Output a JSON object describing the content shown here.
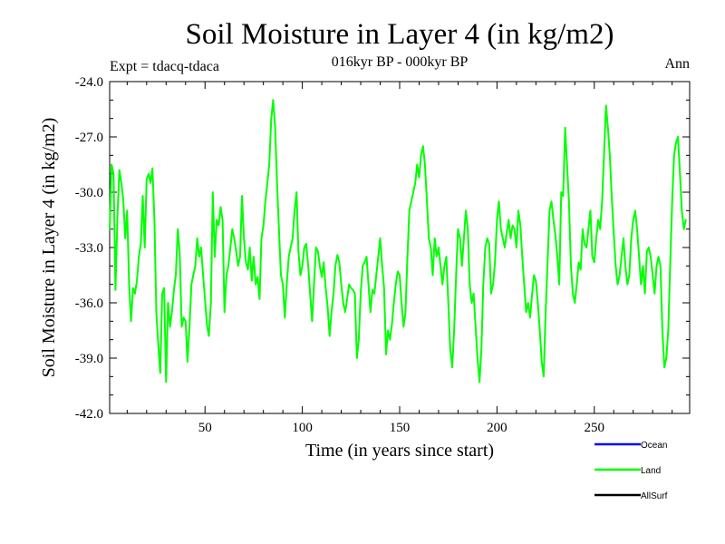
{
  "chart_data": {
    "type": "line",
    "title": "Soil Moisture in Layer 4 (in kg/m2)",
    "subtitle": "016kyr BP - 000kyr BP",
    "experiment": "Expt = tdacq-tdaca",
    "season": "Ann",
    "xlabel": "Time (in years since start)",
    "ylabel": "Soil Moisture in Layer 4 (in kg/m2)",
    "xlim": [
      1,
      299
    ],
    "ylim": [
      -42,
      -24
    ],
    "x_ticks": [
      50,
      100,
      150,
      200,
      250
    ],
    "x_tick_labels": [
      "50",
      "100",
      "150",
      "200",
      "250"
    ],
    "y_ticks": [
      -24,
      -27,
      -30,
      -33,
      -36,
      -39,
      -42
    ],
    "y_tick_labels": [
      "-24.0",
      "-27.0",
      "-30.0",
      "-33.0",
      "-36.0",
      "-39.0",
      "-42.0"
    ],
    "legend": [
      {
        "name": "Ocean",
        "color": "#0000ff"
      },
      {
        "name": "Land",
        "color": "#00ff00"
      },
      {
        "name": "AllSurf",
        "color": "#000000"
      }
    ],
    "series": [
      {
        "name": "Land",
        "color": "#00ff00",
        "x_start": 1,
        "x_step": 1,
        "values": [
          -32.0,
          -28.5,
          -29.0,
          -35.3,
          -31.3,
          -28.8,
          -29.5,
          -30.4,
          -32.5,
          -31.0,
          -35.0,
          -37.0,
          -35.2,
          -35.5,
          -34.8,
          -33.5,
          -32.8,
          -30.2,
          -33.0,
          -29.3,
          -29.0,
          -29.5,
          -28.7,
          -31.5,
          -36.5,
          -38.3,
          -39.8,
          -35.5,
          -35.2,
          -40.3,
          -36.0,
          -37.3,
          -36.5,
          -35.3,
          -34.5,
          -32.0,
          -33.3,
          -37.3,
          -36.8,
          -37.0,
          -39.2,
          -37.3,
          -35.0,
          -34.5,
          -34.0,
          -32.5,
          -33.5,
          -33.0,
          -34.5,
          -35.8,
          -37.2,
          -37.8,
          -36.0,
          -30.0,
          -33.5,
          -31.5,
          -31.8,
          -30.8,
          -31.5,
          -36.5,
          -34.5,
          -34.0,
          -33.0,
          -32.0,
          -32.5,
          -33.2,
          -34.0,
          -33.5,
          -30.2,
          -32.5,
          -33.8,
          -34.2,
          -33.0,
          -34.8,
          -33.5,
          -35.0,
          -34.6,
          -35.8,
          -32.5,
          -31.8,
          -30.5,
          -29.5,
          -28.5,
          -26.0,
          -25.0,
          -26.5,
          -29.5,
          -32.0,
          -34.5,
          -35.0,
          -36.8,
          -35.0,
          -33.5,
          -33.0,
          -32.5,
          -31.0,
          -30.0,
          -33.2,
          -34.5,
          -34.0,
          -33.0,
          -32.8,
          -34.0,
          -35.5,
          -37.0,
          -35.0,
          -33.0,
          -33.2,
          -34.0,
          -34.6,
          -33.8,
          -35.2,
          -36.2,
          -37.8,
          -36.5,
          -35.5,
          -34.0,
          -33.4,
          -33.8,
          -35.0,
          -36.0,
          -36.5,
          -35.8,
          -35.0,
          -35.2,
          -35.3,
          -35.5,
          -39.0,
          -38.0,
          -35.5,
          -34.0,
          -33.8,
          -33.5,
          -35.0,
          -36.5,
          -35.3,
          -35.5,
          -34.5,
          -33.5,
          -32.5,
          -34.0,
          -35.2,
          -38.8,
          -37.5,
          -38.0,
          -37.2,
          -36.0,
          -35.0,
          -34.3,
          -34.5,
          -36.0,
          -37.3,
          -36.5,
          -33.5,
          -31.0,
          -30.5,
          -30.0,
          -29.5,
          -28.5,
          -29.2,
          -28.0,
          -27.5,
          -28.5,
          -30.5,
          -32.5,
          -33.0,
          -34.5,
          -32.5,
          -33.5,
          -33.0,
          -34.0,
          -35.0,
          -34.0,
          -33.5,
          -36.0,
          -38.5,
          -39.5,
          -37.5,
          -34.5,
          -32.0,
          -32.5,
          -34.0,
          -32.5,
          -31.0,
          -32.0,
          -35.0,
          -36.0,
          -35.5,
          -37.3,
          -39.0,
          -40.3,
          -38.5,
          -35.0,
          -33.0,
          -32.5,
          -32.8,
          -35.5,
          -35.0,
          -33.8,
          -31.5,
          -30.5,
          -32.0,
          -32.5,
          -33.0,
          -32.2,
          -31.5,
          -32.5,
          -31.8,
          -32.0,
          -33.0,
          -31.0,
          -31.8,
          -33.5,
          -35.0,
          -36.5,
          -36.0,
          -36.8,
          -35.6,
          -34.5,
          -34.8,
          -36.0,
          -37.5,
          -39.2,
          -40.0,
          -36.5,
          -33.8,
          -31.0,
          -30.5,
          -31.5,
          -32.3,
          -33.5,
          -35.0,
          -30.0,
          -30.2,
          -26.5,
          -28.5,
          -30.5,
          -34.0,
          -35.5,
          -36.0,
          -35.0,
          -33.8,
          -34.2,
          -32.0,
          -32.8,
          -33.0,
          -32.0,
          -31.0,
          -33.5,
          -33.8,
          -32.5,
          -31.5,
          -32.0,
          -30.5,
          -28.0,
          -25.3,
          -26.5,
          -28.0,
          -30.3,
          -32.2,
          -34.0,
          -35.0,
          -34.5,
          -33.5,
          -32.5,
          -34.0,
          -35.0,
          -34.5,
          -32.5,
          -31.5,
          -31.0,
          -32.0,
          -33.5,
          -35.0,
          -34.0,
          -35.5,
          -33.2,
          -33.0,
          -33.5,
          -34.5,
          -35.5,
          -34.0,
          -33.5,
          -34.0,
          -37.5,
          -39.5,
          -39.0,
          -37.5,
          -34.0,
          -30.5,
          -28.0,
          -27.3,
          -27.0,
          -29.0,
          -31.0,
          -32.0,
          -31.5
        ]
      }
    ]
  }
}
